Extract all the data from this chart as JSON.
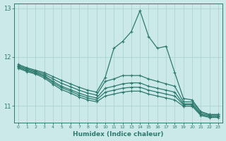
{
  "xlabel": "Humidex (Indice chaleur)",
  "xlim": [
    -0.5,
    23.5
  ],
  "ylim": [
    10.65,
    13.1
  ],
  "yticks": [
    11,
    12,
    13
  ],
  "xticks": [
    0,
    1,
    2,
    3,
    4,
    5,
    6,
    7,
    8,
    9,
    10,
    11,
    12,
    13,
    14,
    15,
    16,
    17,
    18,
    19,
    20,
    21,
    22,
    23
  ],
  "bg_color": "#cce9e9",
  "line_color": "#2d7a6e",
  "grid_color": "#aed4d4",
  "lines": [
    [
      11.85,
      11.78,
      11.73,
      11.68,
      11.6,
      11.52,
      11.45,
      11.38,
      11.32,
      11.28,
      11.58,
      12.18,
      12.32,
      12.52,
      12.95,
      12.42,
      12.18,
      12.22,
      11.68,
      11.15,
      11.12,
      10.88,
      10.82,
      10.82
    ],
    [
      11.83,
      11.76,
      11.71,
      11.65,
      11.55,
      11.46,
      11.39,
      11.32,
      11.26,
      11.22,
      11.5,
      11.55,
      11.62,
      11.62,
      11.62,
      11.55,
      11.5,
      11.45,
      11.4,
      11.08,
      11.08,
      10.87,
      10.82,
      10.82
    ],
    [
      11.81,
      11.74,
      11.69,
      11.62,
      11.5,
      11.4,
      11.33,
      11.26,
      11.2,
      11.16,
      11.36,
      11.4,
      11.45,
      11.47,
      11.47,
      11.4,
      11.36,
      11.32,
      11.28,
      11.04,
      11.04,
      10.84,
      10.8,
      10.8
    ],
    [
      11.79,
      11.72,
      11.67,
      11.6,
      11.47,
      11.37,
      11.3,
      11.22,
      11.16,
      11.12,
      11.28,
      11.32,
      11.36,
      11.38,
      11.38,
      11.32,
      11.28,
      11.24,
      11.2,
      11.02,
      11.02,
      10.82,
      10.78,
      10.78
    ],
    [
      11.77,
      11.7,
      11.65,
      11.57,
      11.44,
      11.33,
      11.26,
      11.18,
      11.12,
      11.08,
      11.2,
      11.24,
      11.28,
      11.3,
      11.3,
      11.24,
      11.2,
      11.16,
      11.12,
      10.99,
      10.99,
      10.8,
      10.76,
      10.76
    ]
  ]
}
